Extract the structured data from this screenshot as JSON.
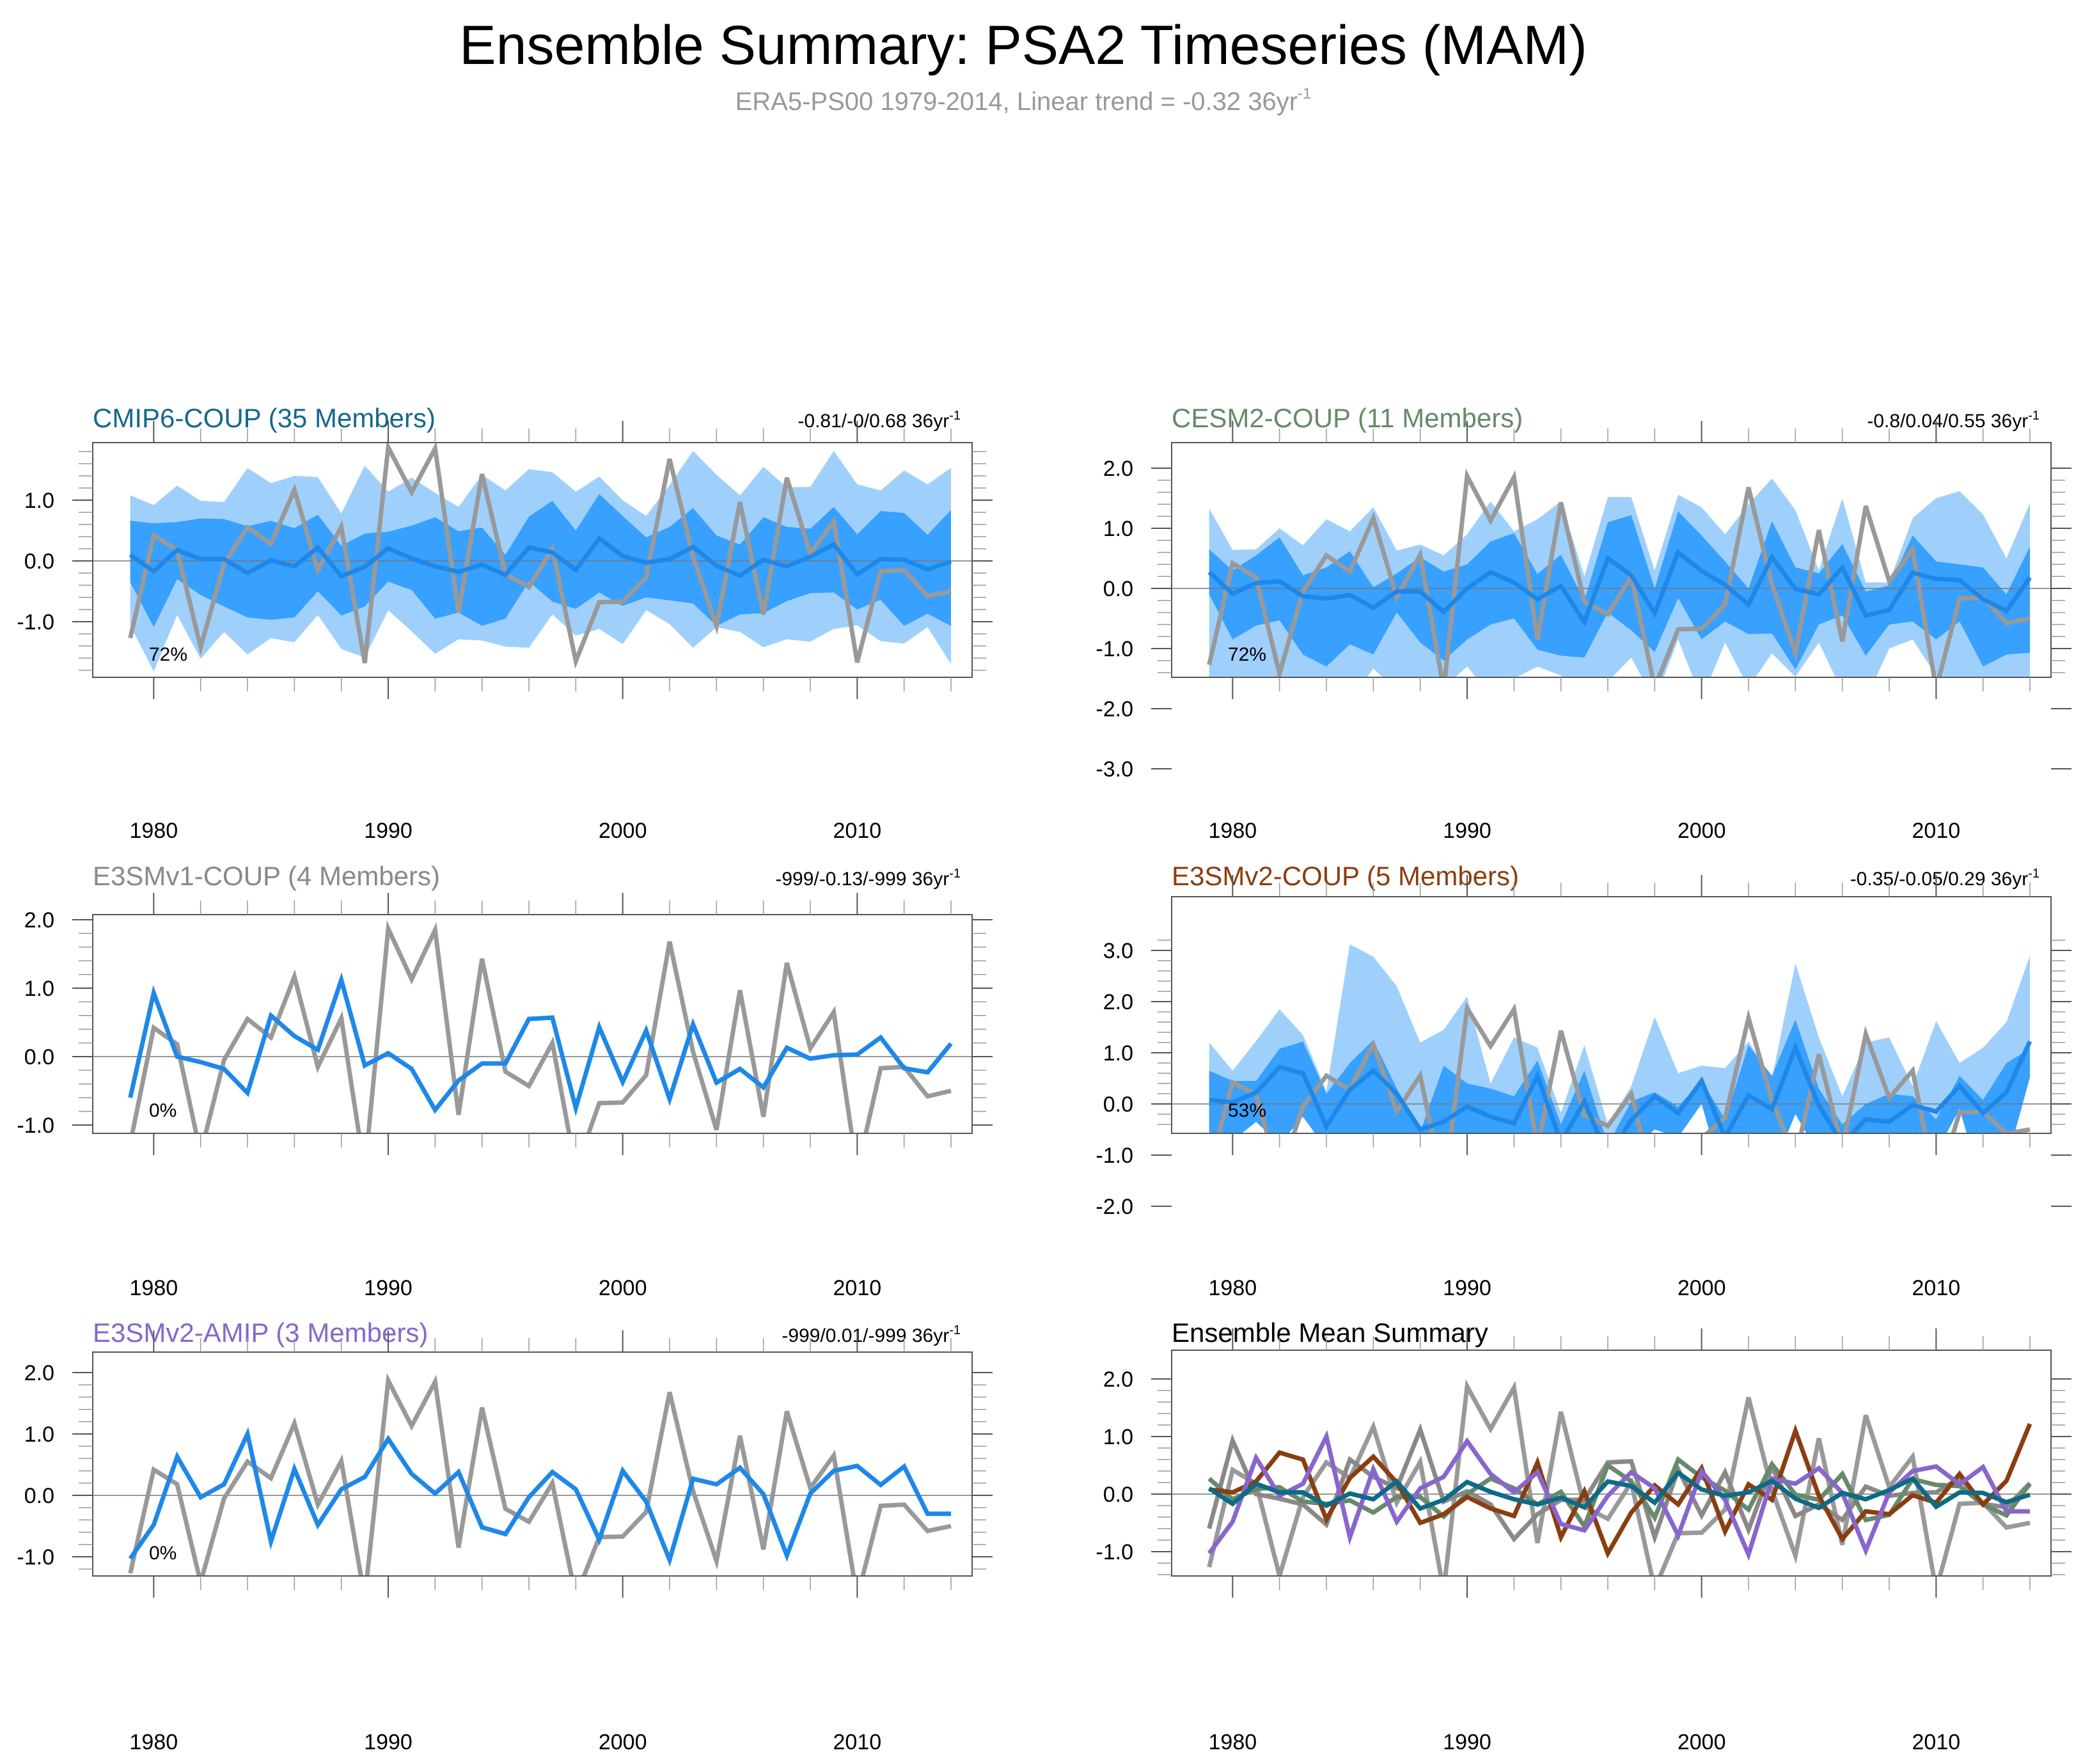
{
  "chart_data": {
    "type": "line",
    "title": "Ensemble Summary: PSA2 Timeseries (MAM)",
    "subtitle": "ERA5-PS00 1979-2014, Linear trend = -0.32 36yr",
    "subtitle_superscript": "-1",
    "x": [
      1979,
      1980,
      1981,
      1982,
      1983,
      1984,
      1985,
      1986,
      1987,
      1988,
      1989,
      1990,
      1991,
      1992,
      1993,
      1994,
      1995,
      1996,
      1997,
      1998,
      1999,
      2000,
      2001,
      2002,
      2003,
      2004,
      2005,
      2006,
      2007,
      2008,
      2009,
      2010,
      2011,
      2012,
      2013,
      2014
    ],
    "x_ticks": [
      1980,
      1990,
      2000,
      2010
    ],
    "x_tick_labels": [
      "1980",
      "1990",
      "2000",
      "2010"
    ],
    "xlim": [
      1977.4,
      2014.9
    ],
    "observations": {
      "name": "ERA5",
      "color": "#999999",
      "values": [
        -1.27,
        0.42,
        0.18,
        -1.42,
        -0.05,
        0.55,
        0.28,
        1.17,
        -0.15,
        0.56,
        -1.68,
        1.87,
        1.13,
        1.85,
        -0.85,
        1.43,
        -0.22,
        -0.43,
        0.2,
        -1.65,
        -0.68,
        -0.67,
        -0.27,
        1.68,
        0.07,
        -1.07,
        0.97,
        -0.88,
        1.37,
        0.12,
        0.65,
        -1.67,
        -0.17,
        -0.15,
        -0.58,
        -0.5
      ]
    },
    "band_colors": {
      "outer": "#9fd0fc",
      "inner": "#38a0ff",
      "mean": "#1e88e8"
    },
    "panels": [
      {
        "id": "cmip6",
        "title": "CMIP6-COUP (35 Members)",
        "title_color": "#16688c",
        "trend": "-0.81/-0/0.68 36yr",
        "trend_superscript": "-1",
        "percent_label": "72%",
        "ylim": [
          -1.9,
          2.15
        ],
        "y_ticks": [
          -1.0,
          0.0,
          1.0
        ],
        "y_tick_labels": [
          "-1.0",
          "0.0",
          "1.0"
        ],
        "has_bands": true,
        "mean": [
          0.1,
          -0.17,
          0.18,
          0.03,
          0.03,
          -0.2,
          0.01,
          -0.09,
          0.22,
          -0.25,
          -0.1,
          0.21,
          0.04,
          -0.09,
          -0.18,
          -0.06,
          -0.23,
          0.22,
          0.14,
          -0.15,
          0.37,
          0.08,
          -0.03,
          0.03,
          0.23,
          -0.08,
          -0.24,
          0.02,
          -0.09,
          0.07,
          0.27,
          -0.22,
          0.03,
          0.02,
          -0.14,
          -0.01
        ],
        "inner_upper": [
          0.66,
          0.62,
          0.64,
          0.7,
          0.69,
          0.57,
          0.66,
          0.54,
          0.76,
          0.25,
          0.45,
          0.48,
          0.58,
          0.72,
          0.49,
          0.55,
          0.1,
          0.73,
          0.99,
          0.5,
          1.1,
          0.74,
          0.39,
          0.56,
          0.87,
          0.42,
          0.27,
          0.72,
          0.56,
          0.53,
          0.89,
          0.44,
          0.82,
          0.79,
          0.43,
          0.84
        ],
        "inner_lower": [
          -0.35,
          -1.09,
          -0.3,
          -0.56,
          -0.75,
          -0.93,
          -0.97,
          -0.93,
          -0.5,
          -0.9,
          -0.75,
          -0.34,
          -0.48,
          -0.95,
          -0.85,
          -1.07,
          -0.95,
          -0.34,
          -0.67,
          -0.79,
          -0.52,
          -0.74,
          -0.6,
          -0.65,
          -0.7,
          -1.07,
          -0.88,
          -0.86,
          -0.66,
          -0.53,
          -0.52,
          -0.8,
          -0.64,
          -1.07,
          -0.87,
          -1.07
        ],
        "outer_upper": [
          1.08,
          0.92,
          1.24,
          0.99,
          0.97,
          1.53,
          1.28,
          1.4,
          1.38,
          0.78,
          1.57,
          1.14,
          1.37,
          1.12,
          0.89,
          1.42,
          1.16,
          1.51,
          1.46,
          1.14,
          1.39,
          1.0,
          0.74,
          1.25,
          1.81,
          1.42,
          1.08,
          1.55,
          1.21,
          1.22,
          1.81,
          1.26,
          1.16,
          1.49,
          1.26,
          1.53
        ],
        "outer_lower": [
          -1.06,
          -1.82,
          -0.89,
          -1.61,
          -1.17,
          -1.54,
          -1.27,
          -1.34,
          -0.89,
          -1.45,
          -1.59,
          -0.81,
          -1.16,
          -1.53,
          -1.29,
          -1.31,
          -1.41,
          -1.43,
          -0.88,
          -1.23,
          -1.12,
          -1.37,
          -0.81,
          -1.04,
          -1.43,
          -1.09,
          -1.17,
          -1.42,
          -1.29,
          -1.33,
          -1.12,
          -1.06,
          -1.32,
          -1.36,
          -1.09,
          -1.7
        ]
      },
      {
        "id": "cesm2",
        "title": "CESM2-COUP (11 Members)",
        "title_color": "#668a6a",
        "trend": "-0.8/0.04/0.55 36yr",
        "trend_superscript": "-1",
        "percent_label": "72%",
        "ylim": [
          -3.2,
          2.0
        ],
        "y_ticks": [
          -3.0,
          -2.0,
          -1.0,
          0.0,
          1.0,
          2.0
        ],
        "y_tick_labels": [
          "-3.0",
          "-2.0",
          "-1.0",
          "0.0",
          "1.0",
          "2.0"
        ],
        "has_bands": true,
        "mean": [
          0.27,
          -0.09,
          0.09,
          0.12,
          -0.13,
          -0.17,
          -0.11,
          -0.32,
          -0.05,
          -0.05,
          -0.39,
          0.0,
          0.27,
          0.1,
          -0.18,
          0.04,
          -0.56,
          0.5,
          0.22,
          -0.41,
          0.6,
          0.29,
          0.06,
          -0.27,
          0.52,
          -0.01,
          -0.1,
          0.35,
          -0.45,
          -0.36,
          0.26,
          0.16,
          0.14,
          -0.18,
          -0.37,
          0.18
        ],
        "inner_upper": [
          0.65,
          0.3,
          0.55,
          0.85,
          0.22,
          0.35,
          0.62,
          0.02,
          0.25,
          0.52,
          0.28,
          0.4,
          0.78,
          0.92,
          0.24,
          0.56,
          -0.2,
          1.1,
          1.22,
          0.0,
          1.28,
          0.88,
          0.45,
          0.0,
          1.12,
          0.35,
          0.25,
          0.74,
          -0.05,
          0.05,
          0.88,
          0.45,
          0.4,
          0.35,
          -0.1,
          0.7
        ],
        "inner_lower": [
          -0.1,
          -0.85,
          -0.62,
          -0.53,
          -1.1,
          -1.3,
          -0.93,
          -1.1,
          -0.4,
          -0.9,
          -1.2,
          -0.85,
          -0.6,
          -0.5,
          -1.02,
          -1.12,
          -1.15,
          -0.4,
          -0.7,
          -1.06,
          -0.16,
          -0.85,
          -0.55,
          -0.76,
          -0.75,
          -1.35,
          -0.6,
          -0.45,
          -1.12,
          -0.6,
          -0.55,
          -0.85,
          -0.55,
          -1.3,
          -1.1,
          -1.07
        ],
        "outer_upper": [
          1.33,
          0.64,
          0.65,
          1.0,
          0.72,
          1.15,
          0.95,
          1.35,
          0.63,
          0.73,
          0.55,
          0.9,
          1.45,
          0.95,
          1.15,
          1.45,
          0.2,
          1.52,
          1.52,
          0.3,
          1.56,
          1.35,
          0.9,
          1.4,
          1.83,
          1.3,
          0.3,
          1.5,
          0.1,
          0.1,
          1.17,
          1.5,
          1.62,
          1.23,
          0.5,
          1.42
        ],
        "outer_lower": [
          -2.95,
          -1.82,
          -2.08,
          -1.62,
          -1.55,
          -1.55,
          -1.87,
          -1.33,
          -1.7,
          -2.05,
          -1.65,
          -1.3,
          -1.77,
          -1.5,
          -1.3,
          -1.45,
          -2.3,
          -1.55,
          -1.15,
          -1.87,
          -0.85,
          -1.85,
          -0.9,
          -1.65,
          -1.08,
          -1.47,
          -0.9,
          -1.72,
          -1.85,
          -1.0,
          -0.85,
          -1.45,
          -1.7,
          -3.05,
          -1.75,
          -1.58
        ]
      },
      {
        "id": "e3smv1",
        "title": "E3SMv1-COUP (4 Members)",
        "title_color": "#8c8888",
        "trend": "-999/-0.13/-999 36yr",
        "trend_superscript": "-1",
        "percent_label": "0%",
        "ylim": [
          -1.95,
          2.08
        ],
        "y_ticks": [
          -1.0,
          0.0,
          1.0,
          2.0
        ],
        "y_tick_labels": [
          "-1.0",
          "0.0",
          "1.0",
          "2.0"
        ],
        "has_bands": false,
        "mean": [
          -0.6,
          0.93,
          0.0,
          -0.08,
          -0.18,
          -0.53,
          0.6,
          0.3,
          0.1,
          1.12,
          -0.13,
          0.05,
          -0.18,
          -0.78,
          -0.35,
          -0.1,
          -0.1,
          0.55,
          0.57,
          -0.75,
          0.43,
          -0.37,
          0.38,
          -0.62,
          0.47,
          -0.38,
          -0.18,
          -0.45,
          0.13,
          -0.03,
          0.02,
          0.03,
          0.28,
          -0.17,
          -0.23,
          0.19
        ]
      },
      {
        "id": "e3smv2-coup",
        "title": "E3SMv2-COUP (5 Members)",
        "title_color": "#8a3e10",
        "trend": "-0.35/-0.05/0.29 36yr",
        "trend_superscript": "-1",
        "percent_label": "53%",
        "ylim": [
          -2.45,
          3.3
        ],
        "y_ticks": [
          -2.0,
          -1.0,
          0.0,
          1.0,
          2.0,
          3.0
        ],
        "y_tick_labels": [
          "-2.0",
          "-1.0",
          "0.0",
          "1.0",
          "2.0",
          "3.0"
        ],
        "has_bands": true,
        "mean": [
          0.08,
          0.03,
          0.22,
          0.72,
          0.6,
          -0.44,
          0.28,
          0.65,
          0.2,
          -0.5,
          -0.35,
          -0.05,
          -0.25,
          -0.38,
          0.55,
          -0.75,
          0.05,
          -1.03,
          -0.32,
          0.15,
          -0.18,
          0.45,
          -0.65,
          0.17,
          -0.1,
          1.1,
          -0.03,
          -0.78,
          -0.3,
          -0.35,
          -0.02,
          -0.15,
          0.35,
          -0.18,
          0.23,
          1.22
        ],
        "inner_upper": [
          0.65,
          0.45,
          0.45,
          1.08,
          1.22,
          0.2,
          0.8,
          1.25,
          0.3,
          -0.55,
          0.75,
          0.4,
          0.3,
          0.15,
          0.85,
          -0.4,
          0.65,
          -0.8,
          0.05,
          0.23,
          -0.05,
          0.45,
          -0.3,
          1.15,
          0.55,
          1.65,
          0.3,
          -0.4,
          0.0,
          0.2,
          0.15,
          -0.3,
          0.55,
          0.08,
          0.8,
          1.08
        ],
        "inner_lower": [
          -0.65,
          -0.72,
          -0.35,
          -0.78,
          -0.25,
          -0.88,
          -1.15,
          -1.45,
          -0.65,
          -1.15,
          -2.22,
          -1.65,
          -1.3,
          -1.7,
          -0.7,
          -1.8,
          -1.65,
          -1.75,
          -0.9,
          -0.5,
          -0.65,
          0.0,
          -1.6,
          -0.9,
          -1.3,
          -0.2,
          -1.0,
          -1.55,
          -1.3,
          -1.45,
          -0.55,
          -0.95,
          -0.1,
          -1.65,
          -1.15,
          0.52
        ],
        "outer_upper": [
          1.2,
          0.65,
          1.23,
          1.85,
          1.35,
          0.25,
          3.12,
          2.88,
          2.3,
          1.2,
          1.45,
          2.1,
          0.4,
          1.3,
          1.1,
          -0.17,
          1.15,
          -0.4,
          0.35,
          1.7,
          0.6,
          0.75,
          0.7,
          1.22,
          0.5,
          2.75,
          1.3,
          0.15,
          1.2,
          1.3,
          0.35,
          1.62,
          0.8,
          1.1,
          1.6,
          2.9
        ],
        "outer_lower": [
          -0.65,
          -0.72,
          -0.35,
          -0.78,
          -0.25,
          -0.88,
          -1.15,
          -1.45,
          -0.65,
          -1.15,
          -2.22,
          -1.65,
          -1.3,
          -1.7,
          -0.7,
          -1.8,
          -1.65,
          -1.75,
          -0.9,
          -0.5,
          -0.65,
          0.0,
          -1.6,
          -0.9,
          -1.3,
          -0.2,
          -1.0,
          -1.55,
          -1.3,
          -1.45,
          -0.55,
          -0.95,
          -0.1,
          -1.65,
          -1.15,
          0.52
        ]
      },
      {
        "id": "e3smv2-amip",
        "title": "E3SMv2-AMIP (3 Members)",
        "title_color": "#8866cc",
        "trend": "-999/0.01/-999 36yr",
        "trend_superscript": "-1",
        "percent_label": "0%",
        "ylim": [
          -1.95,
          2.08
        ],
        "y_ticks": [
          -1.0,
          0.0,
          1.0,
          2.0
        ],
        "y_tick_labels": [
          "-1.0",
          "0.0",
          "1.0",
          "2.0"
        ],
        "has_bands": false,
        "mean": [
          -1.03,
          -0.48,
          0.63,
          -0.03,
          0.18,
          1.0,
          -0.75,
          0.43,
          -0.48,
          0.1,
          0.3,
          0.92,
          0.35,
          0.03,
          0.38,
          -0.52,
          -0.63,
          -0.03,
          0.38,
          0.1,
          -0.72,
          0.4,
          -0.1,
          -1.05,
          0.27,
          0.18,
          0.45,
          0.02,
          -0.98,
          0.03,
          0.4,
          0.48,
          0.17,
          0.47,
          -0.3,
          -0.3
        ]
      },
      {
        "id": "summary",
        "title": "Ensemble Mean Summary",
        "title_color": "#000000",
        "trend": "",
        "percent_label": "",
        "ylim": [
          -1.95,
          2.08
        ],
        "y_ticks": [
          -1.0,
          0.0,
          1.0,
          2.0
        ],
        "y_tick_labels": [
          "-1.0",
          "0.0",
          "1.0",
          "2.0"
        ],
        "has_bands": false,
        "summary_series": [
          {
            "name": "E3SMv1-COUP",
            "color": "#8c8888",
            "ref": "e3smv1"
          },
          {
            "name": "CESM2-COUP",
            "color": "#668a6a",
            "ref": "cesm2"
          },
          {
            "name": "E3SMv2-COUP",
            "color": "#8a3e10",
            "ref": "e3smv2-coup"
          },
          {
            "name": "E3SMv2-AMIP",
            "color": "#8866cc",
            "ref": "e3smv2-amip"
          },
          {
            "name": "CMIP6-COUP",
            "color": "#0e6a86",
            "ref": "cmip6"
          }
        ]
      }
    ]
  }
}
